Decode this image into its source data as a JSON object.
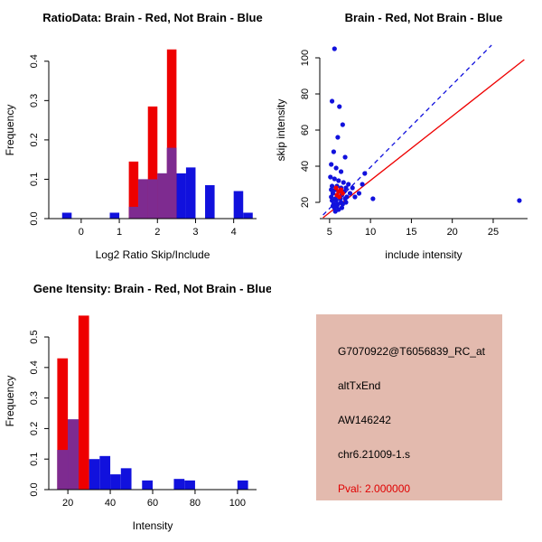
{
  "colors": {
    "red": "#EE0000",
    "blue": "#1111DD",
    "overlap": "#7E2B90",
    "axis": "#000000",
    "info_bg": "#E3BAAE",
    "pval_red": "#E00000"
  },
  "chart_data": [
    {
      "id": "ratio_hist",
      "type": "bar",
      "title": "RatioData: Brain - Red, Not Brain - Blue",
      "xlabel": "Log2 Ratio Skip/Include",
      "ylabel": "Frequency",
      "xlim": [
        -0.85,
        4.6
      ],
      "ylim": [
        0,
        0.45
      ],
      "bin_width": 0.25,
      "grid": false,
      "xticks": [
        {
          "v": 0,
          "l": "0"
        },
        {
          "v": 1,
          "l": "1"
        },
        {
          "v": 2,
          "l": "2"
        },
        {
          "v": 3,
          "l": "3"
        },
        {
          "v": 4,
          "l": "4"
        }
      ],
      "yticks": [
        {
          "v": 0,
          "l": "0.0"
        },
        {
          "v": 0.1,
          "l": "0.1"
        },
        {
          "v": 0.2,
          "l": "0.2"
        },
        {
          "v": 0.3,
          "l": "0.3"
        },
        {
          "v": 0.4,
          "l": "0.4"
        }
      ],
      "series": [
        {
          "name": "not-brain-blue",
          "color": "blue",
          "bars": [
            {
              "x": -0.5,
              "h": 0.015
            },
            {
              "x": 0.75,
              "h": 0.015
            },
            {
              "x": 1.25,
              "h": 0.03
            },
            {
              "x": 1.5,
              "h": 0.1
            },
            {
              "x": 1.75,
              "h": 0.1
            },
            {
              "x": 2,
              "h": 0.115
            },
            {
              "x": 2.25,
              "h": 0.18
            },
            {
              "x": 2.5,
              "h": 0.115
            },
            {
              "x": 2.75,
              "h": 0.13
            },
            {
              "x": 3.25,
              "h": 0.085
            },
            {
              "x": 4,
              "h": 0.07
            },
            {
              "x": 4.25,
              "h": 0.015
            }
          ]
        },
        {
          "name": "brain-red",
          "color": "red",
          "bars": [
            {
              "x": 1.25,
              "h": 0.145
            },
            {
              "x": 1.75,
              "h": 0.285
            },
            {
              "x": 2.25,
              "h": 0.43
            }
          ]
        },
        {
          "name": "overlap",
          "color": "overlap",
          "bars": [
            {
              "x": 1.25,
              "h": 0.03
            },
            {
              "x": 1.5,
              "h": 0.1
            },
            {
              "x": 1.75,
              "h": 0.1
            },
            {
              "x": 2,
              "h": 0.115
            },
            {
              "x": 2.25,
              "h": 0.18
            }
          ]
        }
      ]
    },
    {
      "id": "intensity_scatter",
      "type": "scatter",
      "title": "Brain - Red, Not Brain - Blue",
      "xlabel": "include intensity",
      "ylabel": "skip intensity",
      "xlim": [
        3.8,
        29.2
      ],
      "ylim": [
        11,
        109
      ],
      "grid": false,
      "xticks": [
        {
          "v": 5,
          "l": "5"
        },
        {
          "v": 10,
          "l": "10"
        },
        {
          "v": 15,
          "l": "15"
        },
        {
          "v": 20,
          "l": "20"
        },
        {
          "v": 25,
          "l": "25"
        }
      ],
      "yticks": [
        {
          "v": 20,
          "l": "20"
        },
        {
          "v": 40,
          "l": "40"
        },
        {
          "v": 60,
          "l": "60"
        },
        {
          "v": 80,
          "l": "80"
        },
        {
          "v": 100,
          "l": "100"
        }
      ],
      "lines": [
        {
          "name": "identity-line-blue",
          "color": "blue",
          "dash": true,
          "from": [
            4.2,
            13
          ],
          "to": [
            24.8,
            107
          ]
        },
        {
          "name": "fit-line-red",
          "color": "red",
          "dash": false,
          "from": [
            4.2,
            11.5
          ],
          "to": [
            28.8,
            99
          ]
        }
      ],
      "series": [
        {
          "name": "not-brain-blue",
          "color": "blue",
          "points": [
            [
              5.6,
              105
            ],
            [
              5.3,
              76
            ],
            [
              6.2,
              73
            ],
            [
              6.6,
              63
            ],
            [
              6,
              56
            ],
            [
              5.5,
              48
            ],
            [
              6.9,
              45
            ],
            [
              5.2,
              41
            ],
            [
              5.8,
              39
            ],
            [
              6.4,
              37
            ],
            [
              9.3,
              36
            ],
            [
              5.1,
              34
            ],
            [
              5.6,
              33
            ],
            [
              6.1,
              32
            ],
            [
              6.7,
              31
            ],
            [
              7.3,
              30
            ],
            [
              9,
              30
            ],
            [
              5.3,
              29
            ],
            [
              5.9,
              29
            ],
            [
              6.4,
              28
            ],
            [
              7,
              28
            ],
            [
              7.8,
              28
            ],
            [
              5.2,
              27
            ],
            [
              5.7,
              27
            ],
            [
              6.2,
              26
            ],
            [
              6.8,
              26
            ],
            [
              7.5,
              25
            ],
            [
              8.6,
              25
            ],
            [
              5.4,
              25
            ],
            [
              5.9,
              24
            ],
            [
              6.5,
              24
            ],
            [
              7.1,
              23
            ],
            [
              8.1,
              23
            ],
            [
              5.2,
              23
            ],
            [
              5.7,
              22
            ],
            [
              6.3,
              22
            ],
            [
              6.9,
              22
            ],
            [
              10.3,
              22
            ],
            [
              28.2,
              21
            ],
            [
              5.3,
              21
            ],
            [
              5.8,
              21
            ],
            [
              6.4,
              20
            ],
            [
              7,
              20
            ],
            [
              5.5,
              19
            ],
            [
              6,
              19
            ],
            [
              6.6,
              19
            ],
            [
              5.4,
              18
            ],
            [
              5.9,
              18
            ],
            [
              6.5,
              17
            ],
            [
              5.6,
              17
            ],
            [
              6.1,
              16
            ],
            [
              5.7,
              15
            ]
          ]
        },
        {
          "name": "brain-red",
          "color": "red",
          "points": [
            [
              5.8,
              28
            ],
            [
              6.1,
              26
            ],
            [
              6.4,
              27
            ],
            [
              5.9,
              24
            ],
            [
              6.6,
              25
            ],
            [
              6.2,
              23
            ]
          ]
        }
      ]
    },
    {
      "id": "gene_hist",
      "type": "bar",
      "title": "Gene Itensity: Brain - Red, Not Brain - Blue",
      "xlabel": "Intensity",
      "ylabel": "Frequency",
      "xlim": [
        11,
        109
      ],
      "ylim": [
        0,
        0.58
      ],
      "bin_width": 5,
      "grid": false,
      "xticks": [
        {
          "v": 20,
          "l": "20"
        },
        {
          "v": 40,
          "l": "40"
        },
        {
          "v": 60,
          "l": "60"
        },
        {
          "v": 80,
          "l": "80"
        },
        {
          "v": 100,
          "l": "100"
        }
      ],
      "yticks": [
        {
          "v": 0,
          "l": "0.0"
        },
        {
          "v": 0.1,
          "l": "0.1"
        },
        {
          "v": 0.2,
          "l": "0.2"
        },
        {
          "v": 0.3,
          "l": "0.3"
        },
        {
          "v": 0.4,
          "l": "0.4"
        },
        {
          "v": 0.5,
          "l": "0.5"
        }
      ],
      "series": [
        {
          "name": "not-brain-blue",
          "color": "blue",
          "bars": [
            {
              "x": 15,
              "h": 0.13
            },
            {
              "x": 20,
              "h": 0.23
            },
            {
              "x": 30,
              "h": 0.1
            },
            {
              "x": 35,
              "h": 0.11
            },
            {
              "x": 40,
              "h": 0.05
            },
            {
              "x": 45,
              "h": 0.07
            },
            {
              "x": 55,
              "h": 0.03
            },
            {
              "x": 70,
              "h": 0.035
            },
            {
              "x": 75,
              "h": 0.03
            },
            {
              "x": 100,
              "h": 0.03
            }
          ]
        },
        {
          "name": "brain-red",
          "color": "red",
          "bars": [
            {
              "x": 15,
              "h": 0.43
            },
            {
              "x": 25,
              "h": 0.57
            }
          ]
        },
        {
          "name": "overlap",
          "color": "overlap",
          "bars": [
            {
              "x": 15,
              "h": 0.13
            },
            {
              "x": 20,
              "h": 0.23
            }
          ]
        }
      ]
    }
  ],
  "info_panel": {
    "probe_id": "G7070922@T6056839_RC_at",
    "event_type": "altTxEnd",
    "accession": "AW146242",
    "location": "chr6.21009-1.s",
    "pval": "Pval: 2.000000"
  }
}
